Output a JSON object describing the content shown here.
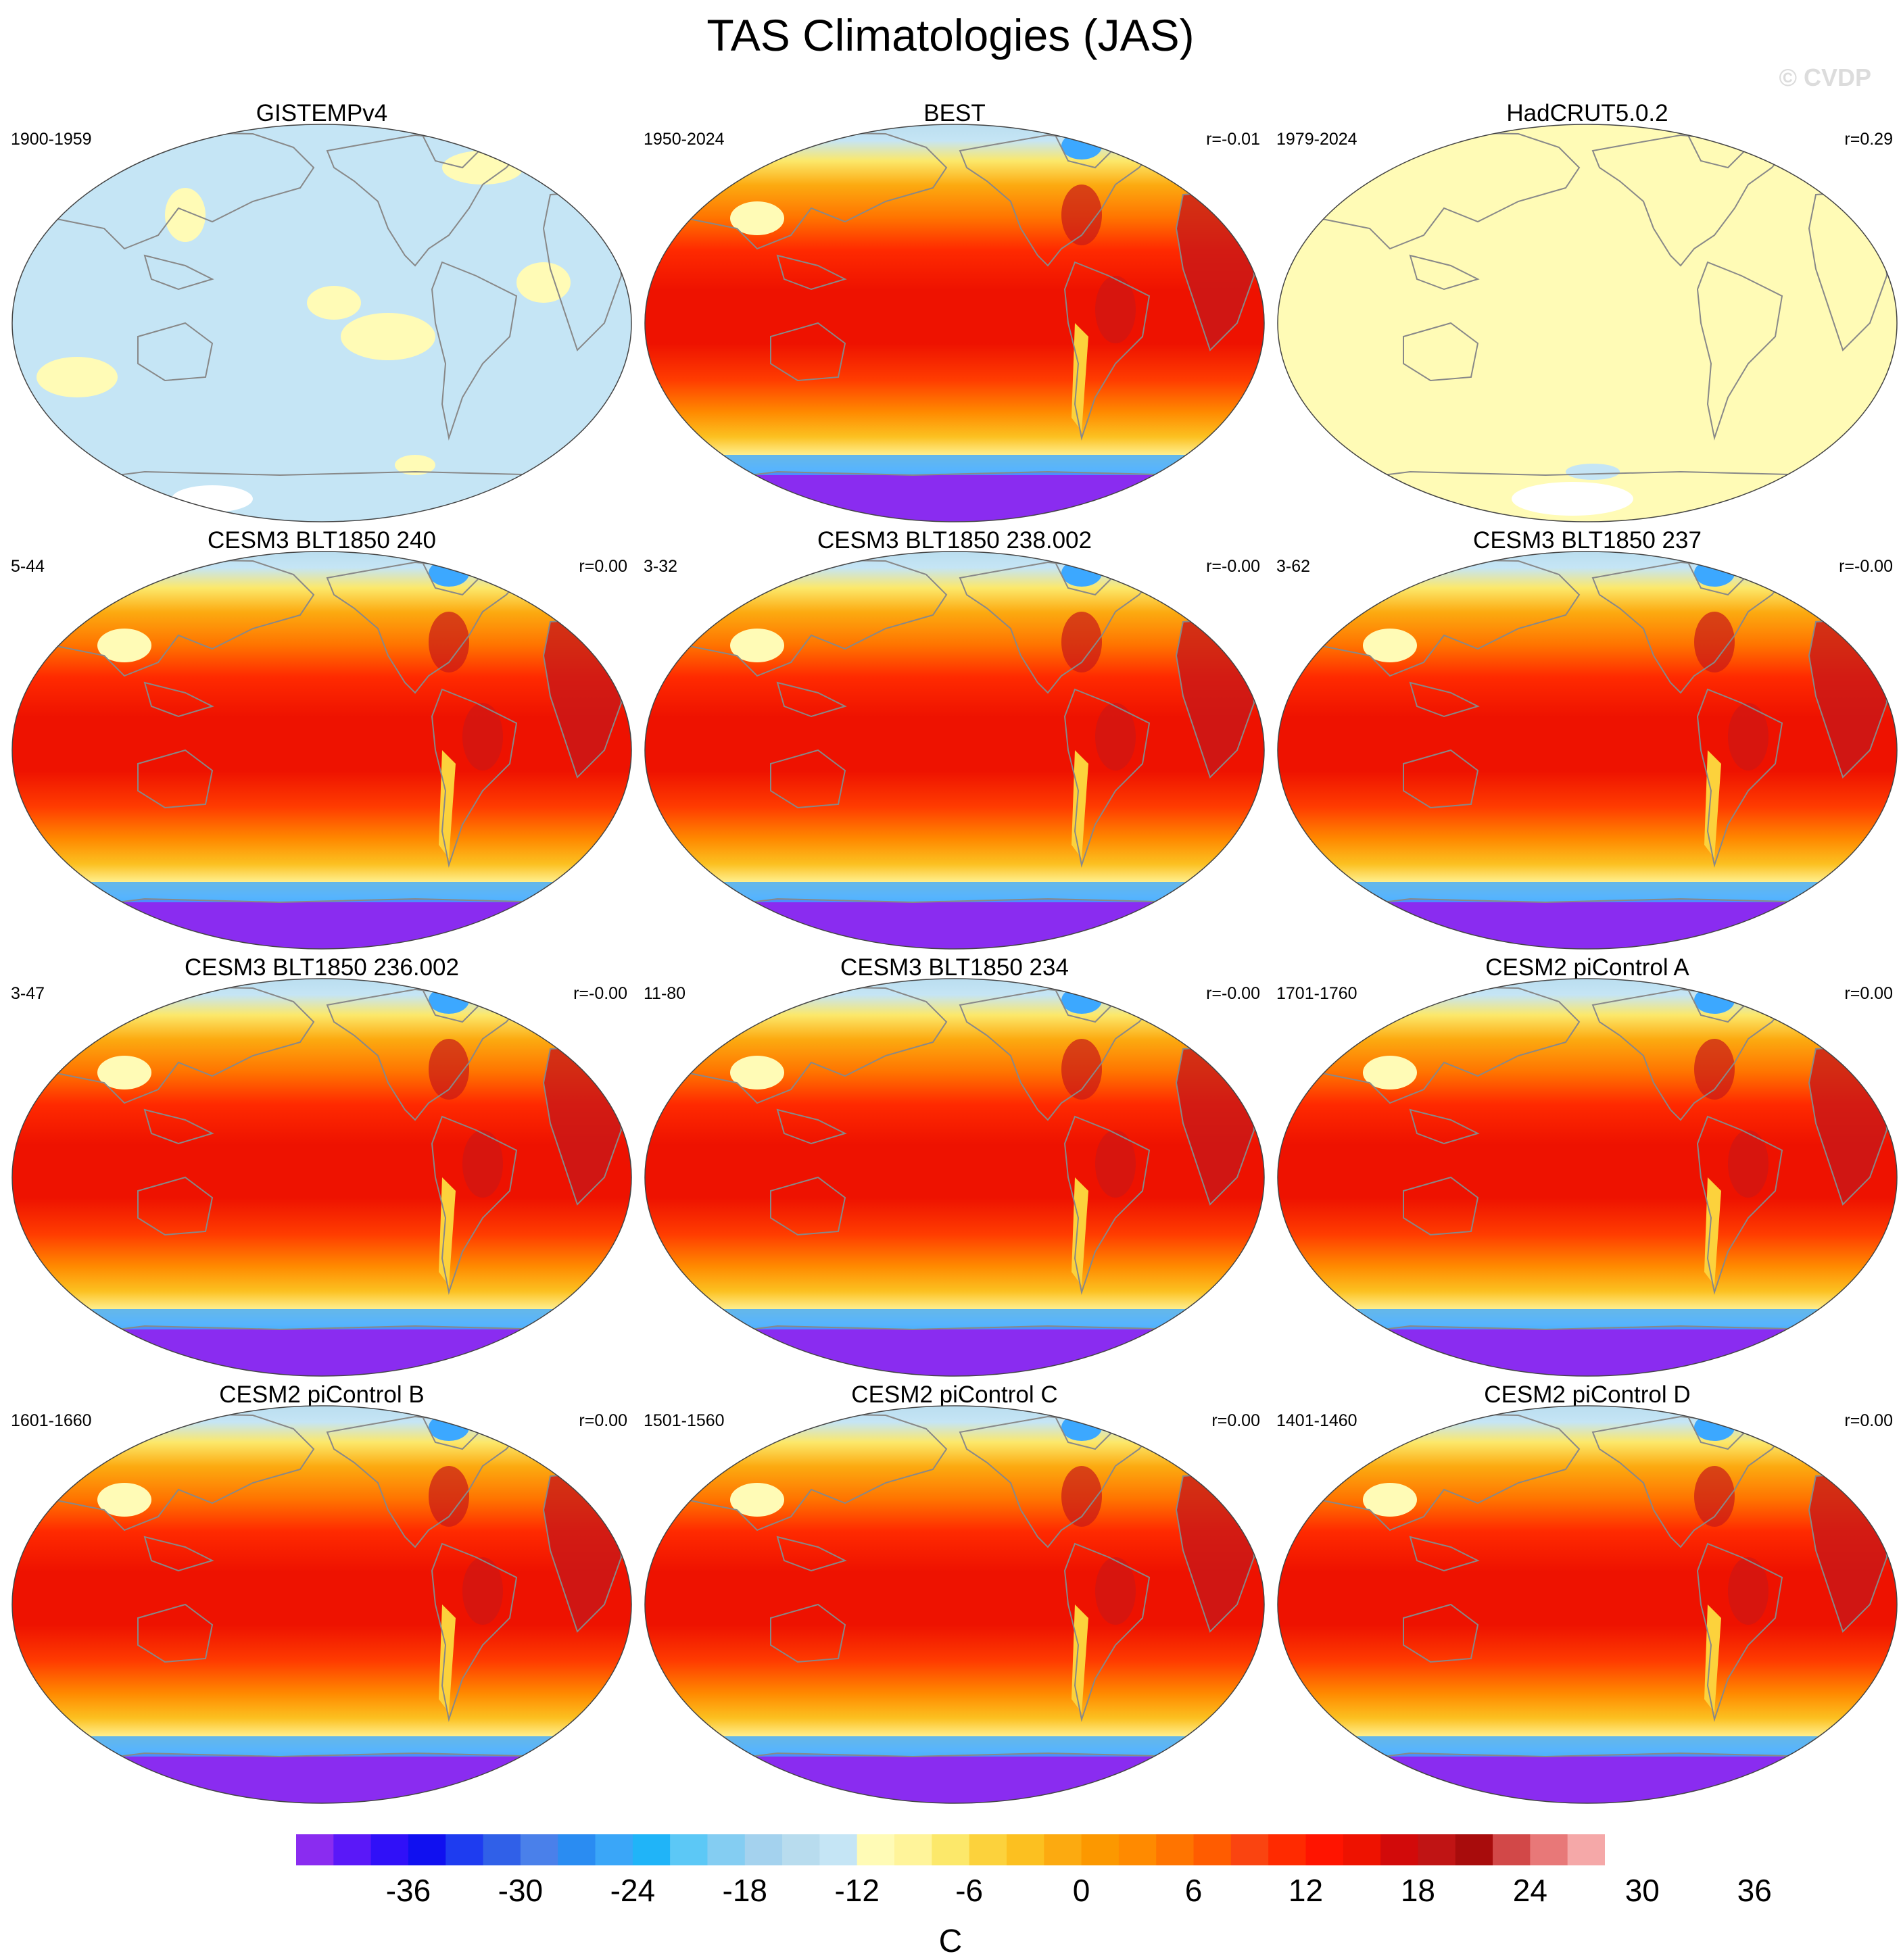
{
  "title": "TAS Climatologies (JAS)",
  "watermark": "© CVDP",
  "colors": {
    "ocean_tropical": "#ee1200",
    "land_hot": "#c81818",
    "outline": "#888888",
    "mid_warm": "#ff8a00",
    "high_lat": "#fcd23c",
    "polar_sea": "#3ca8ff",
    "antarctic": "#8a2cf0",
    "light_blue": "#c5e5f5",
    "pale_yellow": "#fffbb6",
    "missing": "#ffffff"
  },
  "panels": [
    {
      "title": "GISTEMPv4",
      "left": "1900-1959",
      "right": "",
      "style": "anomaly_blue"
    },
    {
      "title": "BEST",
      "left": "1950-2024",
      "right": "r=-0.01",
      "style": "full"
    },
    {
      "title": "HadCRUT5.0.2",
      "left": "1979-2024",
      "right": "r=0.29",
      "style": "anomaly_yellow"
    },
    {
      "title": "CESM3 BLT1850 240",
      "left": "5-44",
      "right": "r=0.00",
      "style": "full"
    },
    {
      "title": "CESM3 BLT1850 238.002",
      "left": "3-32",
      "right": "r=-0.00",
      "style": "full"
    },
    {
      "title": "CESM3 BLT1850 237",
      "left": "3-62",
      "right": "r=-0.00",
      "style": "full"
    },
    {
      "title": "CESM3 BLT1850 236.002",
      "left": "3-47",
      "right": "r=-0.00",
      "style": "full"
    },
    {
      "title": "CESM3 BLT1850 234",
      "left": "11-80",
      "right": "r=-0.00",
      "style": "full"
    },
    {
      "title": "CESM2 piControl A",
      "left": "1701-1760",
      "right": "r=0.00",
      "style": "full"
    },
    {
      "title": "CESM2 piControl B",
      "left": "1601-1660",
      "right": "r=0.00",
      "style": "full"
    },
    {
      "title": "CESM2 piControl C",
      "left": "1501-1560",
      "right": "r=0.00",
      "style": "full"
    },
    {
      "title": "CESM2 piControl D",
      "left": "1401-1460",
      "right": "r=0.00",
      "style": "full"
    }
  ],
  "colorbar": {
    "colors": [
      "#8a2cf0",
      "#5a18f8",
      "#3010f8",
      "#1010f0",
      "#1e3cf0",
      "#3060e8",
      "#4a80ea",
      "#2a8cf2",
      "#3aa6f8",
      "#20b4f8",
      "#5cc8f6",
      "#84cdf2",
      "#a4d2ee",
      "#b8dcee",
      "#c5e5f5",
      "#fffbb6",
      "#fff49a",
      "#fce86a",
      "#fcd23c",
      "#fcc020",
      "#fcaa10",
      "#fc9800",
      "#ff8a00",
      "#ff7400",
      "#ff5c00",
      "#fa4410",
      "#ff2a00",
      "#ff1400",
      "#ee1200",
      "#d20a0a",
      "#c01414",
      "#a80c0c",
      "#d24848",
      "#e87878",
      "#f5a8a8"
    ],
    "labels": [
      "-36",
      "-30",
      "-24",
      "-18",
      "-12",
      "-6",
      "0",
      "6",
      "12",
      "18",
      "24",
      "30",
      "36"
    ],
    "units": "C"
  }
}
